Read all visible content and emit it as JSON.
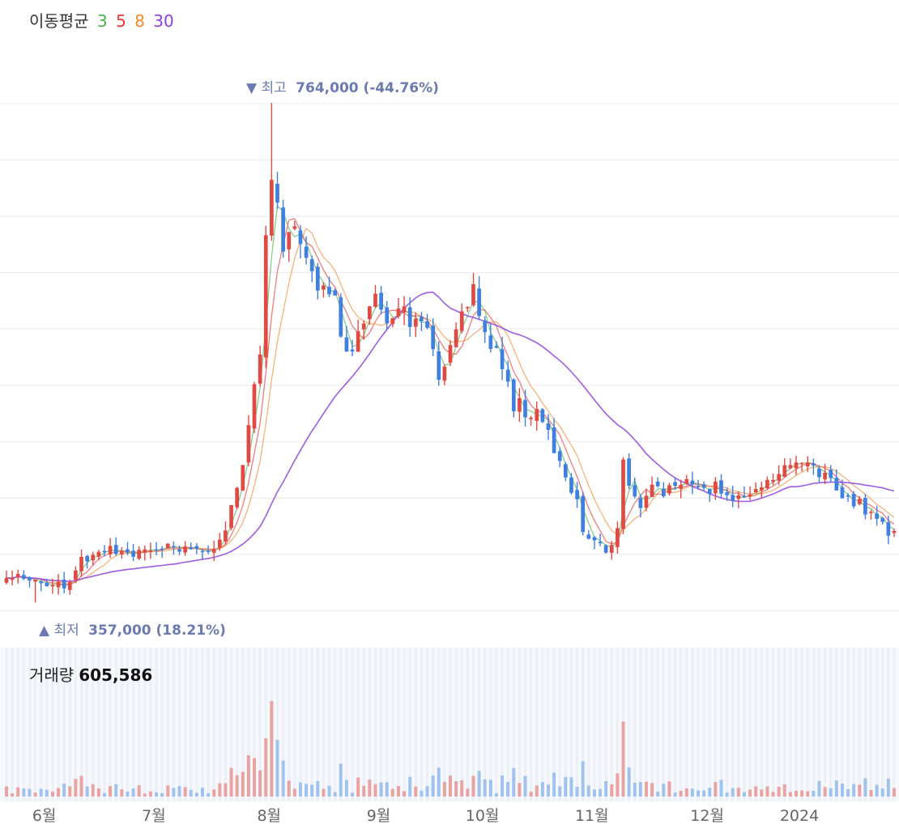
{
  "legend": {
    "label": "이동평균",
    "ma": [
      {
        "period": "3",
        "color": "#4caf50"
      },
      {
        "period": "5",
        "color": "#e53935"
      },
      {
        "period": "8",
        "color": "#ef8a2e"
      },
      {
        "period": "30",
        "color": "#8e3fe0"
      }
    ]
  },
  "annotations": {
    "high": {
      "marker": "▼",
      "label": "최고",
      "value": "764,000 (-44.76%)"
    },
    "low": {
      "marker": "▲",
      "label": "최저",
      "value": "357,000 (18.21%)"
    }
  },
  "volume": {
    "label": "거래량",
    "value": "605,586"
  },
  "colors": {
    "up": "#e04a43",
    "down": "#3f7fe0",
    "up_vol": "#eaa3a3",
    "down_vol": "#9fc3ee",
    "grid": "#e9e9ee"
  },
  "chart_data": {
    "type": "candlestick",
    "x_ticks": [
      "6월",
      "7월",
      "8월",
      "9월",
      "10월",
      "11월",
      "12월",
      "2024"
    ],
    "y_range": [
      352000,
      770000
    ],
    "anchors": [
      [
        0,
        377000
      ],
      [
        5,
        374000
      ],
      [
        10,
        372000
      ],
      [
        14,
        395000
      ],
      [
        20,
        400000
      ],
      [
        25,
        398000
      ],
      [
        30,
        402000
      ],
      [
        35,
        403000
      ],
      [
        38,
        410000
      ],
      [
        40,
        450000
      ],
      [
        42,
        500000
      ],
      [
        44,
        560000
      ],
      [
        45,
        650000
      ],
      [
        46,
        700000
      ],
      [
        47,
        680000
      ],
      [
        48,
        640000
      ],
      [
        50,
        670000
      ],
      [
        52,
        630000
      ],
      [
        54,
        610000
      ],
      [
        57,
        600000
      ],
      [
        59,
        560000
      ],
      [
        61,
        580000
      ],
      [
        64,
        610000
      ],
      [
        66,
        580000
      ],
      [
        68,
        600000
      ],
      [
        70,
        590000
      ],
      [
        73,
        580000
      ],
      [
        75,
        545000
      ],
      [
        77,
        560000
      ],
      [
        79,
        600000
      ],
      [
        81,
        610000
      ],
      [
        83,
        580000
      ],
      [
        86,
        545000
      ],
      [
        88,
        520000
      ],
      [
        91,
        510000
      ],
      [
        93,
        505000
      ],
      [
        96,
        470000
      ],
      [
        98,
        450000
      ],
      [
        100,
        420000
      ],
      [
        102,
        408000
      ],
      [
        104,
        400000
      ],
      [
        106,
        415000
      ],
      [
        107,
        475000
      ],
      [
        108,
        450000
      ],
      [
        110,
        440000
      ],
      [
        112,
        450000
      ],
      [
        115,
        448000
      ],
      [
        118,
        452000
      ],
      [
        121,
        450000
      ],
      [
        124,
        452000
      ],
      [
        127,
        440000
      ],
      [
        129,
        445000
      ],
      [
        131,
        450000
      ],
      [
        133,
        460000
      ],
      [
        135,
        473000
      ],
      [
        137,
        465000
      ],
      [
        139,
        466000
      ],
      [
        141,
        460000
      ],
      [
        143,
        455000
      ],
      [
        145,
        448000
      ],
      [
        147,
        440000
      ],
      [
        149,
        430000
      ],
      [
        151,
        422000
      ],
      [
        153,
        416000
      ],
      [
        154,
        413000
      ]
    ],
    "high": {
      "index": 46,
      "value": 764000
    },
    "low": {
      "index": 5,
      "value": 357000
    },
    "ma_periods": [
      3,
      5,
      8,
      30
    ],
    "volume_last": 605586
  }
}
